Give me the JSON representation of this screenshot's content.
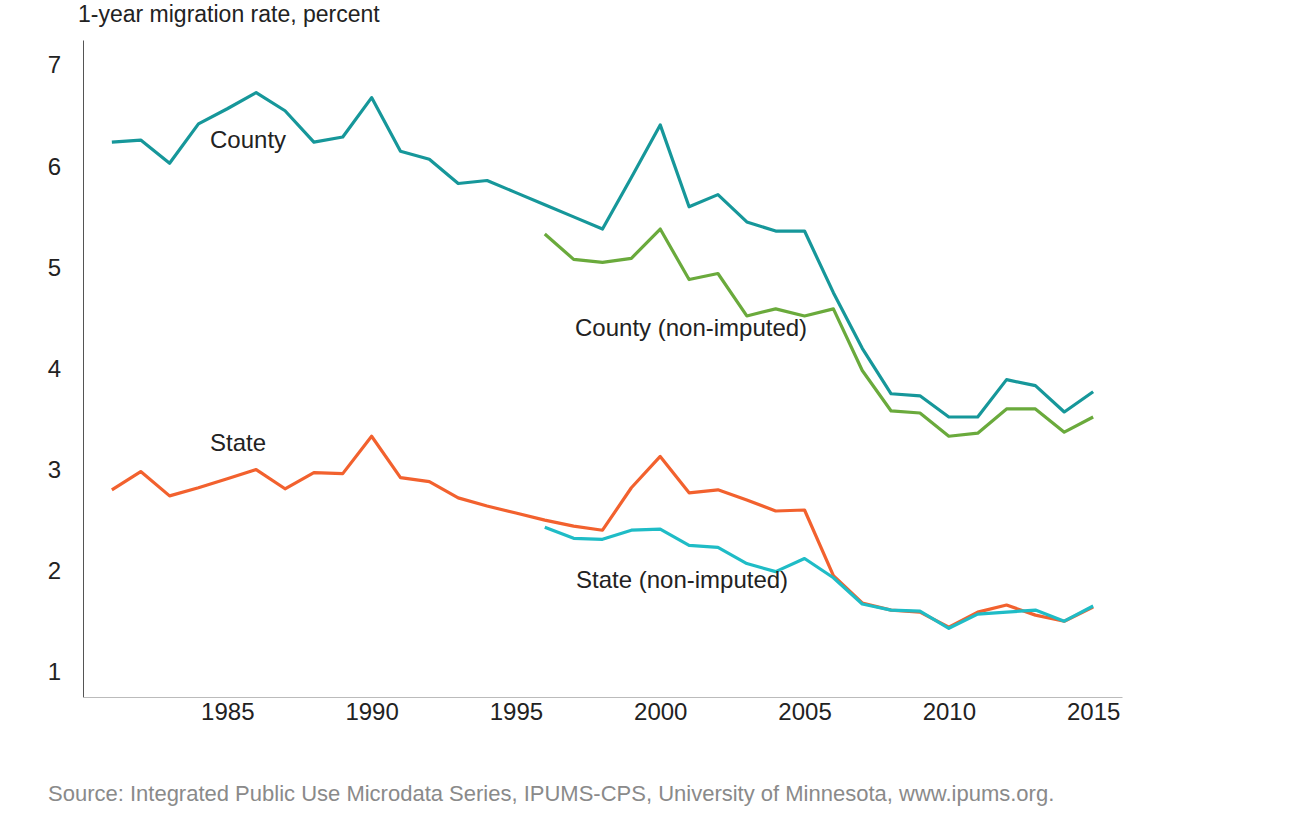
{
  "chart_data": {
    "type": "line",
    "y_label": "1-year migration rate, percent",
    "source": "Source: Integrated Public Use Microdata Series, IPUMS-CPS, University of Minnesota, www.ipums.org.",
    "x": [
      1981,
      1982,
      1983,
      1984,
      1985,
      1986,
      1987,
      1988,
      1989,
      1990,
      1991,
      1992,
      1993,
      1994,
      1995,
      1996,
      1997,
      1998,
      1999,
      2000,
      2001,
      2002,
      2003,
      2004,
      2005,
      2006,
      2007,
      2008,
      2009,
      2010,
      2011,
      2012,
      2013,
      2014,
      2015
    ],
    "xlim": [
      1980,
      2016
    ],
    "xticks": [
      1985,
      1990,
      1995,
      2000,
      2005,
      2010,
      2015
    ],
    "ylim": [
      0.75,
      7.25
    ],
    "yticks": [
      1,
      2,
      3,
      4,
      5,
      6,
      7
    ],
    "grid": false,
    "series": [
      {
        "name": "County",
        "color": "#16979a",
        "values": [
          6.24,
          6.26,
          6.03,
          6.42,
          6.57,
          6.73,
          6.55,
          6.24,
          6.29,
          6.68,
          6.15,
          6.07,
          5.83,
          5.86,
          5.74,
          5.62,
          5.5,
          5.38,
          5.89,
          6.41,
          5.6,
          5.72,
          5.45,
          5.36,
          5.36,
          4.75,
          4.2,
          3.75,
          3.73,
          3.52,
          3.52,
          3.89,
          3.83,
          3.57,
          3.77
        ]
      },
      {
        "name": "County (non-imputed)",
        "color": "#6aaa3c",
        "values": [
          null,
          null,
          null,
          null,
          null,
          null,
          null,
          null,
          null,
          null,
          null,
          null,
          null,
          null,
          null,
          5.33,
          5.08,
          5.05,
          5.09,
          5.38,
          4.88,
          4.94,
          4.52,
          4.59,
          4.52,
          4.59,
          3.98,
          3.58,
          3.56,
          3.33,
          3.36,
          3.6,
          3.6,
          3.37,
          3.52
        ]
      },
      {
        "name": "State",
        "color": "#f2612e",
        "values": [
          2.8,
          2.98,
          2.74,
          2.82,
          2.91,
          3.0,
          2.81,
          2.97,
          2.96,
          3.33,
          2.92,
          2.88,
          2.72,
          2.64,
          2.57,
          2.5,
          2.44,
          2.4,
          2.82,
          3.13,
          2.77,
          2.8,
          2.7,
          2.59,
          2.6,
          1.95,
          1.68,
          1.61,
          1.59,
          1.44,
          1.59,
          1.66,
          1.56,
          1.5,
          1.64
        ]
      },
      {
        "name": "State (non-imputed)",
        "color": "#1fbcc6",
        "values": [
          null,
          null,
          null,
          null,
          null,
          null,
          null,
          null,
          null,
          null,
          null,
          null,
          null,
          null,
          null,
          2.43,
          2.32,
          2.31,
          2.4,
          2.41,
          2.25,
          2.23,
          2.07,
          1.99,
          2.12,
          1.93,
          1.67,
          1.61,
          1.6,
          1.43,
          1.57,
          1.59,
          1.61,
          1.5,
          1.65
        ]
      }
    ]
  }
}
